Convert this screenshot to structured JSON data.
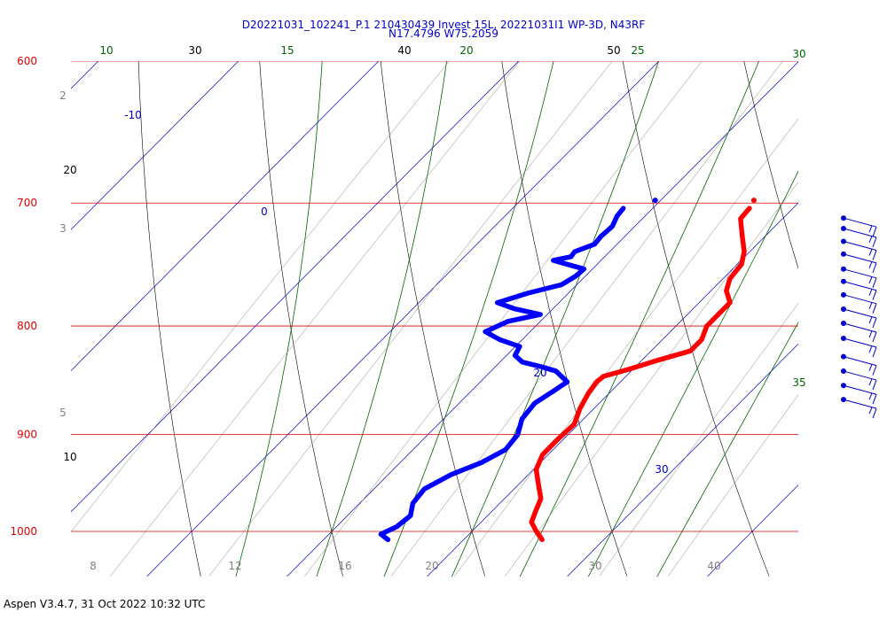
{
  "header": {
    "title_line1": "D20221031_102241_P.1 210430439 Invest 15L, 20221031I1 WP-3D, N43RF",
    "title_line2": "N17.4796 W75.2059"
  },
  "footer": {
    "text": "Aspen V3.4.7, 31 Oct 2022  10:32 UTC"
  },
  "colors": {
    "isobar": "#e00000",
    "isotherm": "#0000cc",
    "dry_adiabat": "#000000",
    "moist_adiabat": "#006400",
    "mixing_ratio": "#808080",
    "temperature": "#ff0000",
    "dewpoint": "#0000ff",
    "wind_barb": "#0000cc"
  },
  "chart_data": {
    "type": "skew-t",
    "pressure_range_hpa": [
      1050,
      600
    ],
    "isobars": [
      {
        "p": 600,
        "label": "600"
      },
      {
        "p": 700,
        "label": "700"
      },
      {
        "p": 800,
        "label": "800"
      },
      {
        "p": 900,
        "label": "900"
      },
      {
        "p": 1000,
        "label": "1000"
      }
    ],
    "isotherm_labels": [
      {
        "t": -10,
        "label": "-10"
      },
      {
        "t": 0,
        "label": "0"
      },
      {
        "t": 20,
        "label": "20"
      },
      {
        "t": 30,
        "label": "30"
      }
    ],
    "dry_adiabat_labels": [
      "10",
      "20",
      "30",
      "40",
      "50"
    ],
    "moist_adiabat_labels": [
      "10",
      "15",
      "20",
      "25",
      "30",
      "35"
    ],
    "mixing_ratio_labels": [
      "2",
      "3",
      "5",
      "8",
      "12",
      "16",
      "20",
      "30",
      "40"
    ],
    "temperature_profile": [
      {
        "p": 1009,
        "t": 25.6
      },
      {
        "p": 1000,
        "t": 24.6
      },
      {
        "p": 990,
        "t": 23.6
      },
      {
        "p": 978,
        "t": 23.1
      },
      {
        "p": 965,
        "t": 22.6
      },
      {
        "p": 950,
        "t": 21.4
      },
      {
        "p": 935,
        "t": 20.2
      },
      {
        "p": 920,
        "t": 19.6
      },
      {
        "p": 905,
        "t": 19.6
      },
      {
        "p": 890,
        "t": 19.7
      },
      {
        "p": 875,
        "t": 19.0
      },
      {
        "p": 860,
        "t": 18.5
      },
      {
        "p": 850,
        "t": 18.3
      },
      {
        "p": 845,
        "t": 18.4
      },
      {
        "p": 838,
        "t": 19.8
      },
      {
        "p": 830,
        "t": 21.2
      },
      {
        "p": 822,
        "t": 22.8
      },
      {
        "p": 812,
        "t": 22.8
      },
      {
        "p": 800,
        "t": 22.2
      },
      {
        "p": 790,
        "t": 22.2
      },
      {
        "p": 780,
        "t": 22.2
      },
      {
        "p": 770,
        "t": 21.1
      },
      {
        "p": 760,
        "t": 20.5
      },
      {
        "p": 748,
        "t": 20.3
      },
      {
        "p": 738,
        "t": 19.6
      },
      {
        "p": 725,
        "t": 18.3
      },
      {
        "p": 712,
        "t": 17.0
      },
      {
        "p": 704,
        "t": 16.9
      }
    ],
    "dewpoint_profile": [
      {
        "p": 1009,
        "t": 14.6
      },
      {
        "p": 1003,
        "t": 13.7
      },
      {
        "p": 995,
        "t": 14.3
      },
      {
        "p": 983,
        "t": 14.5
      },
      {
        "p": 970,
        "t": 13.8
      },
      {
        "p": 955,
        "t": 13.6
      },
      {
        "p": 940,
        "t": 14.5
      },
      {
        "p": 928,
        "t": 15.8
      },
      {
        "p": 915,
        "t": 16.6
      },
      {
        "p": 900,
        "t": 16.4
      },
      {
        "p": 885,
        "t": 15.6
      },
      {
        "p": 870,
        "t": 15.4
      },
      {
        "p": 858,
        "t": 15.9
      },
      {
        "p": 850,
        "t": 16.2
      },
      {
        "p": 840,
        "t": 14.6
      },
      {
        "p": 836,
        "t": 13.2
      },
      {
        "p": 832,
        "t": 11.6
      },
      {
        "p": 826,
        "t": 10.6
      },
      {
        "p": 818,
        "t": 10.3
      },
      {
        "p": 812,
        "t": 8.4
      },
      {
        "p": 805,
        "t": 6.8
      },
      {
        "p": 796,
        "t": 7.7
      },
      {
        "p": 790,
        "t": 9.5
      },
      {
        "p": 785,
        "t": 7.2
      },
      {
        "p": 780,
        "t": 5.6
      },
      {
        "p": 772,
        "t": 7.1
      },
      {
        "p": 765,
        "t": 8.9
      },
      {
        "p": 758,
        "t": 9.3
      },
      {
        "p": 752,
        "t": 9.4
      },
      {
        "p": 748,
        "t": 7.8
      },
      {
        "p": 745,
        "t": 6.6
      },
      {
        "p": 742,
        "t": 7.6
      },
      {
        "p": 738,
        "t": 7.5
      },
      {
        "p": 732,
        "t": 8.4
      },
      {
        "p": 726,
        "t": 8.3
      },
      {
        "p": 718,
        "t": 8.4
      },
      {
        "p": 710,
        "t": 8.0
      },
      {
        "p": 704,
        "t": 7.9
      }
    ],
    "wind_barbs": [
      {
        "p": 702,
        "knots": 15
      },
      {
        "p": 710,
        "knots": 15
      },
      {
        "p": 720,
        "knots": 15
      },
      {
        "p": 730,
        "knots": 15
      },
      {
        "p": 742,
        "knots": 15
      },
      {
        "p": 752,
        "knots": 15
      },
      {
        "p": 763,
        "knots": 15
      },
      {
        "p": 775,
        "knots": 15
      },
      {
        "p": 787,
        "knots": 15
      },
      {
        "p": 800,
        "knots": 15
      },
      {
        "p": 816,
        "knots": 15
      },
      {
        "p": 829,
        "knots": 15
      },
      {
        "p": 842,
        "knots": 15
      },
      {
        "p": 855,
        "knots": 15
      }
    ]
  }
}
